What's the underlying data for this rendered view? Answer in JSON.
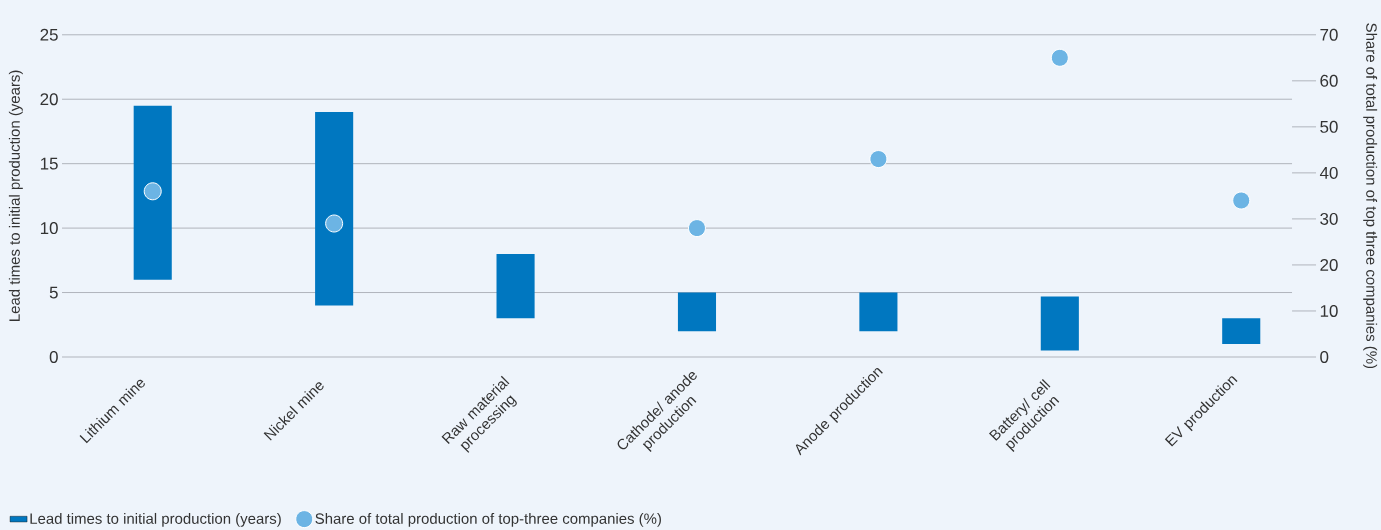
{
  "chart_data": {
    "type": "bar",
    "categories": [
      "Lithium mine",
      "Nickel mine",
      "Raw material processing",
      "Cathode/ anode production",
      "Anode production",
      "Battery/ cell production",
      "EV production"
    ],
    "series": [
      {
        "name": "Lead times to initial production (years)",
        "type": "bar",
        "color": "#0077c0",
        "base": [
          6,
          4,
          3,
          2,
          2,
          0.5,
          1
        ],
        "values": [
          13.5,
          15,
          5,
          3,
          3,
          4.2,
          2
        ]
      },
      {
        "name": "Share of total production of top-three companies (%)",
        "type": "scatter",
        "axis": "y2",
        "color": "#6cb4e4",
        "values": [
          36,
          29,
          null,
          28,
          43,
          65,
          34
        ]
      }
    ],
    "ylabel": "Lead times to initial production (years)",
    "y2label": "Share of total production of top three companies (%)",
    "ylim": [
      0,
      25
    ],
    "yticks": [
      0,
      5,
      10,
      15,
      20,
      25
    ],
    "y2lim": [
      0,
      70
    ],
    "y2ticks": [
      0,
      10,
      20,
      30,
      40,
      50,
      60,
      70
    ],
    "grid": "y",
    "legend": "bottom left"
  }
}
